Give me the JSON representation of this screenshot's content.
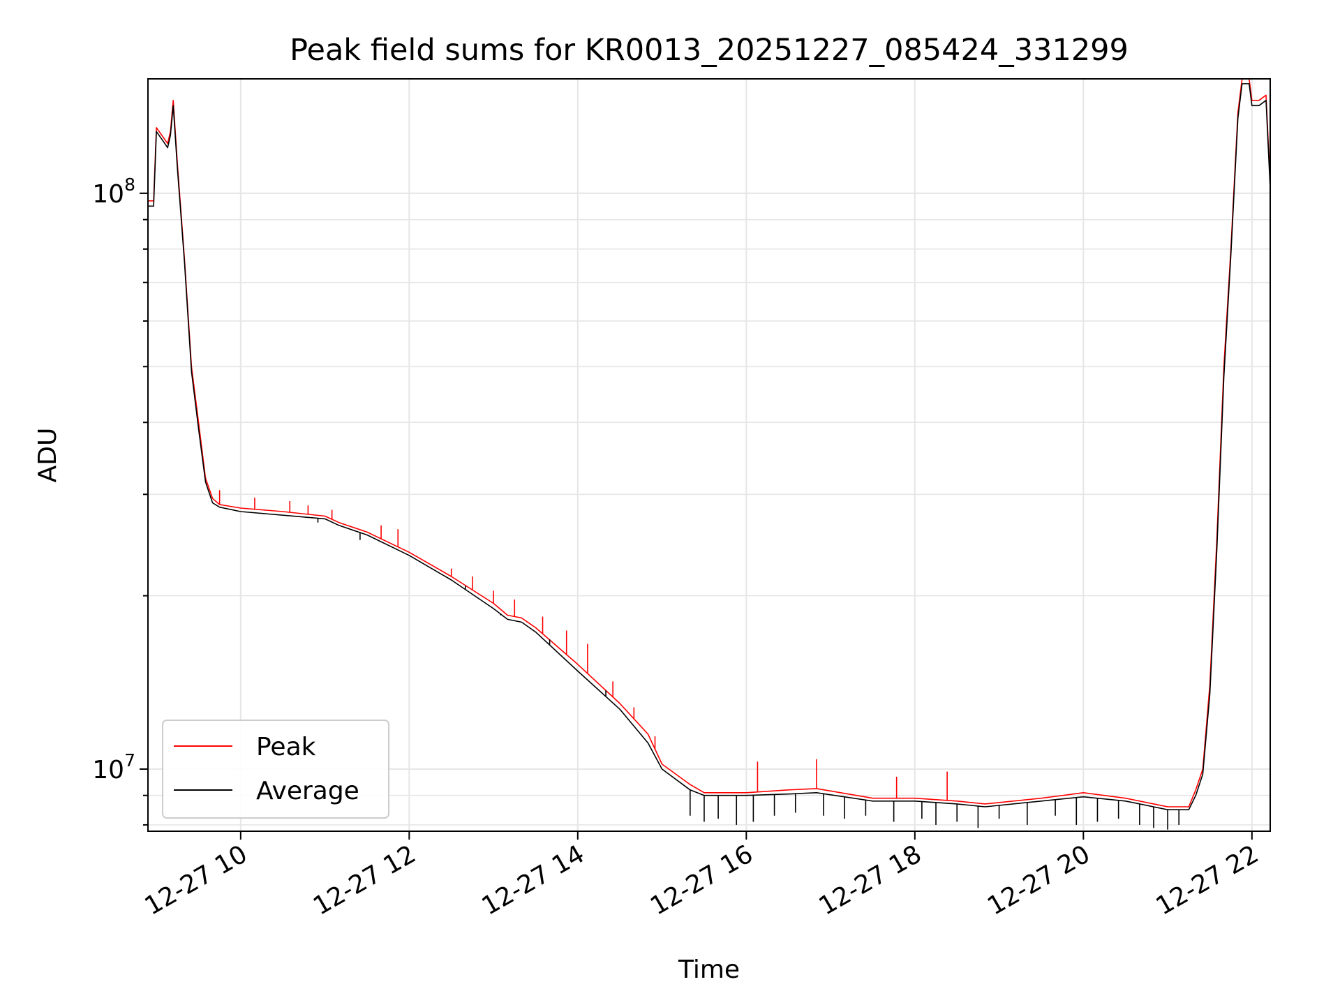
{
  "chart_data": {
    "type": "line",
    "title": "Peak field sums for KR0013_20251227_085424_331299",
    "xlabel": "Time",
    "ylabel": "ADU",
    "y_scale": "log",
    "ylim": [
      7800000,
      158000000
    ],
    "xlim": [
      "2025-12-27 08:54",
      "2025-12-27 22:13"
    ],
    "grid": true,
    "legend_position": "lower-left",
    "x_ticks": [
      {
        "t": "2025-12-27 10:00",
        "label": "12-27 10"
      },
      {
        "t": "2025-12-27 12:00",
        "label": "12-27 12"
      },
      {
        "t": "2025-12-27 14:00",
        "label": "12-27 14"
      },
      {
        "t": "2025-12-27 16:00",
        "label": "12-27 16"
      },
      {
        "t": "2025-12-27 18:00",
        "label": "12-27 18"
      },
      {
        "t": "2025-12-27 20:00",
        "label": "12-27 20"
      },
      {
        "t": "2025-12-27 22:00",
        "label": "12-27 22"
      }
    ],
    "y_ticks": [
      {
        "value": 10000000,
        "base": "10",
        "exp": "7"
      },
      {
        "value": 100000000,
        "base": "10",
        "exp": "8"
      }
    ],
    "series": [
      {
        "name": "Peak",
        "color": "#ff0000",
        "x": [
          "2025-12-27 08:54",
          "2025-12-27 08:58",
          "2025-12-27 09:00",
          "2025-12-27 09:04",
          "2025-12-27 09:08",
          "2025-12-27 09:10",
          "2025-12-27 09:12",
          "2025-12-27 09:15",
          "2025-12-27 09:20",
          "2025-12-27 09:25",
          "2025-12-27 09:30",
          "2025-12-27 09:35",
          "2025-12-27 09:40",
          "2025-12-27 09:45",
          "2025-12-27 10:00",
          "2025-12-27 10:30",
          "2025-12-27 11:00",
          "2025-12-27 11:10",
          "2025-12-27 11:30",
          "2025-12-27 12:00",
          "2025-12-27 12:30",
          "2025-12-27 13:00",
          "2025-12-27 13:10",
          "2025-12-27 13:20",
          "2025-12-27 13:30",
          "2025-12-27 14:00",
          "2025-12-27 14:30",
          "2025-12-27 14:50",
          "2025-12-27 15:00",
          "2025-12-27 15:20",
          "2025-12-27 15:30",
          "2025-12-27 16:00",
          "2025-12-27 16:30",
          "2025-12-27 16:50",
          "2025-12-27 17:30",
          "2025-12-27 18:00",
          "2025-12-27 18:30",
          "2025-12-27 18:50",
          "2025-12-27 19:30",
          "2025-12-27 20:00",
          "2025-12-27 20:30",
          "2025-12-27 21:00",
          "2025-12-27 21:15",
          "2025-12-27 21:20",
          "2025-12-27 21:25",
          "2025-12-27 21:30",
          "2025-12-27 21:35",
          "2025-12-27 21:40",
          "2025-12-27 21:45",
          "2025-12-27 21:50",
          "2025-12-27 21:53",
          "2025-12-27 21:58",
          "2025-12-27 22:00",
          "2025-12-27 22:05",
          "2025-12-27 22:10",
          "2025-12-27 22:13"
        ],
        "values": [
          97000000,
          97000000,
          130000000,
          126000000,
          122000000,
          128000000,
          145000000,
          112000000,
          77000000,
          50000000,
          40000000,
          32000000,
          29500000,
          28800000,
          28400000,
          28000000,
          27500000,
          26800000,
          25800000,
          23800000,
          21600000,
          19400000,
          18500000,
          18300000,
          17600000,
          15200000,
          13000000,
          11500000,
          10200000,
          9400000,
          9100000,
          9100000,
          9200000,
          9250000,
          8900000,
          8900000,
          8800000,
          8700000,
          8900000,
          9100000,
          8900000,
          8600000,
          8600000,
          9200000,
          10000000,
          14000000,
          25000000,
          50000000,
          80000000,
          138000000,
          158000000,
          158000000,
          145000000,
          145000000,
          148000000,
          104000000
        ],
        "spikes": [
          [
            "2025-12-27 09:45",
            30500000
          ],
          [
            "2025-12-27 10:10",
            29600000
          ],
          [
            "2025-12-27 10:35",
            29200000
          ],
          [
            "2025-12-27 10:48",
            28700000
          ],
          [
            "2025-12-27 11:05",
            28200000
          ],
          [
            "2025-12-27 11:40",
            26500000
          ],
          [
            "2025-12-27 11:52",
            26100000
          ],
          [
            "2025-12-27 12:30",
            22300000
          ],
          [
            "2025-12-27 12:45",
            21600000
          ],
          [
            "2025-12-27 13:00",
            20400000
          ],
          [
            "2025-12-27 13:15",
            19700000
          ],
          [
            "2025-12-27 13:35",
            18400000
          ],
          [
            "2025-12-27 13:52",
            17400000
          ],
          [
            "2025-12-27 14:07",
            16500000
          ],
          [
            "2025-12-27 14:25",
            14200000
          ],
          [
            "2025-12-27 14:40",
            12800000
          ],
          [
            "2025-12-27 14:55",
            11400000
          ],
          [
            "2025-12-27 16:08",
            10300000
          ],
          [
            "2025-12-27 16:50",
            10400000
          ],
          [
            "2025-12-27 17:47",
            9700000
          ],
          [
            "2025-12-27 18:23",
            9900000
          ]
        ]
      },
      {
        "name": "Average",
        "color": "#000000",
        "x": [
          "2025-12-27 08:54",
          "2025-12-27 08:58",
          "2025-12-27 09:00",
          "2025-12-27 09:04",
          "2025-12-27 09:08",
          "2025-12-27 09:10",
          "2025-12-27 09:12",
          "2025-12-27 09:15",
          "2025-12-27 09:20",
          "2025-12-27 09:25",
          "2025-12-27 09:30",
          "2025-12-27 09:35",
          "2025-12-27 09:40",
          "2025-12-27 09:45",
          "2025-12-27 10:00",
          "2025-12-27 10:30",
          "2025-12-27 11:00",
          "2025-12-27 11:10",
          "2025-12-27 11:30",
          "2025-12-27 12:00",
          "2025-12-27 12:30",
          "2025-12-27 13:00",
          "2025-12-27 13:10",
          "2025-12-27 13:20",
          "2025-12-27 13:30",
          "2025-12-27 14:00",
          "2025-12-27 14:30",
          "2025-12-27 14:50",
          "2025-12-27 15:00",
          "2025-12-27 15:20",
          "2025-12-27 15:30",
          "2025-12-27 16:00",
          "2025-12-27 16:30",
          "2025-12-27 16:50",
          "2025-12-27 17:30",
          "2025-12-27 18:00",
          "2025-12-27 18:30",
          "2025-12-27 18:50",
          "2025-12-27 19:30",
          "2025-12-27 20:00",
          "2025-12-27 20:30",
          "2025-12-27 21:00",
          "2025-12-27 21:15",
          "2025-12-27 21:20",
          "2025-12-27 21:25",
          "2025-12-27 21:30",
          "2025-12-27 21:35",
          "2025-12-27 21:40",
          "2025-12-27 21:45",
          "2025-12-27 21:50",
          "2025-12-27 21:53",
          "2025-12-27 21:58",
          "2025-12-27 22:00",
          "2025-12-27 22:05",
          "2025-12-27 22:10",
          "2025-12-27 22:13"
        ],
        "values": [
          95000000,
          95000000,
          128000000,
          124000000,
          120000000,
          126000000,
          142000000,
          110000000,
          76000000,
          49000000,
          39000000,
          31500000,
          29000000,
          28500000,
          28000000,
          27600000,
          27200000,
          26500000,
          25500000,
          23500000,
          21300000,
          19000000,
          18200000,
          18000000,
          17300000,
          14800000,
          12700000,
          11100000,
          10000000,
          9200000,
          9000000,
          9000000,
          9050000,
          9100000,
          8800000,
          8800000,
          8700000,
          8600000,
          8800000,
          8950000,
          8800000,
          8500000,
          8500000,
          9000000,
          9800000,
          13500000,
          24000000,
          48000000,
          78000000,
          135000000,
          155000000,
          155000000,
          142000000,
          142000000,
          145000000,
          102000000
        ],
        "dips": [
          [
            "2025-12-27 10:55",
            26800000
          ],
          [
            "2025-12-27 11:25",
            25000000
          ],
          [
            "2025-12-27 12:40",
            20800000
          ],
          [
            "2025-12-27 13:05",
            18500000
          ],
          [
            "2025-12-27 13:40",
            16800000
          ],
          [
            "2025-12-27 14:20",
            13700000
          ],
          [
            "2025-12-27 14:45",
            11500000
          ],
          [
            "2025-12-27 15:20",
            8300000
          ],
          [
            "2025-12-27 15:30",
            8100000
          ],
          [
            "2025-12-27 15:40",
            8200000
          ],
          [
            "2025-12-27 15:53",
            8000000
          ],
          [
            "2025-12-27 16:05",
            8100000
          ],
          [
            "2025-12-27 16:20",
            8300000
          ],
          [
            "2025-12-27 16:35",
            8400000
          ],
          [
            "2025-12-27 16:55",
            8300000
          ],
          [
            "2025-12-27 17:10",
            8200000
          ],
          [
            "2025-12-27 17:25",
            8300000
          ],
          [
            "2025-12-27 17:45",
            8100000
          ],
          [
            "2025-12-27 18:05",
            8200000
          ],
          [
            "2025-12-27 18:15",
            8000000
          ],
          [
            "2025-12-27 18:30",
            8100000
          ],
          [
            "2025-12-27 18:45",
            7900000
          ],
          [
            "2025-12-27 19:00",
            8200000
          ],
          [
            "2025-12-27 19:20",
            8000000
          ],
          [
            "2025-12-27 19:40",
            8300000
          ],
          [
            "2025-12-27 19:55",
            8000000
          ],
          [
            "2025-12-27 20:10",
            8100000
          ],
          [
            "2025-12-27 20:25",
            8200000
          ],
          [
            "2025-12-27 20:40",
            8000000
          ],
          [
            "2025-12-27 20:50",
            7900000
          ],
          [
            "2025-12-27 21:00",
            7850000
          ],
          [
            "2025-12-27 21:08",
            8000000
          ]
        ]
      }
    ]
  }
}
